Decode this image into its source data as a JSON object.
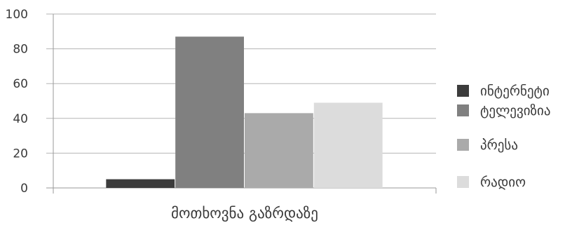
{
  "chart_data": {
    "type": "bar",
    "categories": [
      "მოთხოვნა გაზრდაზე"
    ],
    "series": [
      {
        "name": "ინტერნეტი",
        "values": [
          5
        ],
        "color": "#3c3c3c"
      },
      {
        "name": "ტელევიზია",
        "values": [
          87
        ],
        "color": "#808080"
      },
      {
        "name": "პრესა",
        "values": [
          43
        ],
        "color": "#aaaaaa"
      },
      {
        "name": "რადიო",
        "values": [
          49
        ],
        "color": "#dcdcdc"
      }
    ],
    "yticks": [
      "0",
      "20",
      "40",
      "60",
      "80",
      "100"
    ],
    "ylim": [
      0,
      100
    ],
    "grid": true,
    "legend_position": "right",
    "axis_color": "#9a9a9a",
    "grid_color": "#b5b5b5"
  }
}
